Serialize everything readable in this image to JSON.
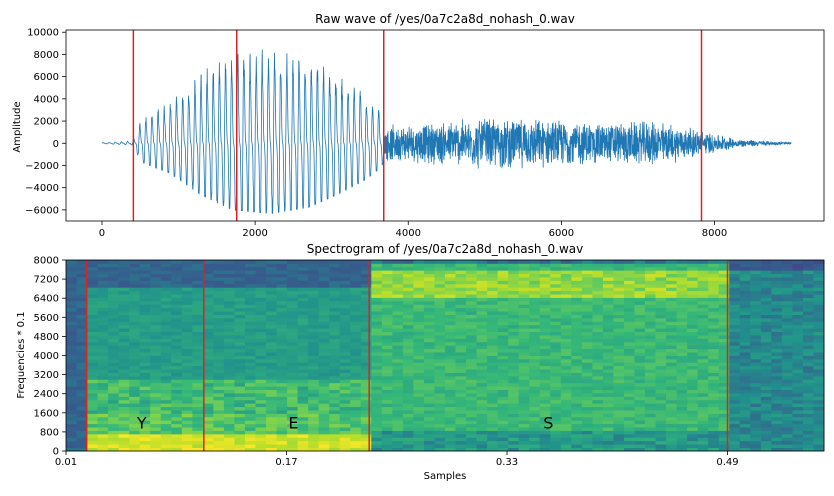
{
  "chart_data": [
    {
      "type": "line",
      "title": "Raw wave of /yes/0a7c2a8d_nohash_0.wav",
      "xlabel": "",
      "ylabel": "Amplitude",
      "xlim": [
        -470,
        9430
      ],
      "ylim": [
        -7000,
        10200
      ],
      "x_ticks": [
        0,
        2000,
        4000,
        6000,
        8000
      ],
      "x_tick_labels": [
        "0",
        "2000",
        "4000",
        "6000",
        "8000"
      ],
      "y_ticks": [
        -6000,
        -4000,
        -2000,
        0,
        2000,
        4000,
        6000,
        8000,
        10000
      ],
      "y_tick_labels": [
        "−6000",
        "−4000",
        "−2000",
        "0",
        "2000",
        "4000",
        "6000",
        "8000",
        "10000"
      ],
      "series_color": "#1f77b4",
      "marker_color": "#e32020",
      "n_samples": 9000,
      "envelope": [
        {
          "x": 0,
          "amp": 50
        },
        {
          "x": 400,
          "amp": 200
        },
        {
          "x": 520,
          "amp": 2400
        },
        {
          "x": 900,
          "amp": 3800
        },
        {
          "x": 1300,
          "amp": 6500
        },
        {
          "x": 1700,
          "amp": 8300
        },
        {
          "x": 2200,
          "amp": 8800
        },
        {
          "x": 2700,
          "amp": 8000
        },
        {
          "x": 3100,
          "amp": 6300
        },
        {
          "x": 3450,
          "amp": 4500
        },
        {
          "x": 3650,
          "amp": 3000
        },
        {
          "x": 3700,
          "amp": 1700
        },
        {
          "x": 4200,
          "amp": 1900
        },
        {
          "x": 5000,
          "amp": 2500
        },
        {
          "x": 5800,
          "amp": 2300
        },
        {
          "x": 6500,
          "amp": 2000
        },
        {
          "x": 7300,
          "amp": 2100
        },
        {
          "x": 7800,
          "amp": 1300
        },
        {
          "x": 8300,
          "amp": 400
        },
        {
          "x": 9000,
          "amp": 100
        }
      ],
      "vertical_markers": [
        410,
        1760,
        3680,
        7830
      ]
    },
    {
      "type": "heatmap",
      "title": "Spectrogram of /yes/0a7c2a8d_nohash_0.wav",
      "xlabel": "Samples",
      "ylabel": "Frequencies * 0.1",
      "xlim": [
        0.01,
        0.56
      ],
      "ylim": [
        0,
        8000
      ],
      "x_ticks": [
        0.01,
        0.17,
        0.33,
        0.49
      ],
      "x_tick_labels": [
        "0.01",
        "0.17",
        "0.33",
        "0.49"
      ],
      "y_ticks": [
        0,
        800,
        1600,
        2400,
        3200,
        4000,
        4800,
        5600,
        6400,
        7200,
        8000
      ],
      "y_tick_labels": [
        "0",
        "800",
        "1600",
        "2400",
        "3200",
        "4000",
        "4800",
        "5600",
        "6400",
        "7200",
        "8000"
      ],
      "colormap": "viridis",
      "vertical_markers": [
        0.025,
        0.11,
        0.23,
        0.49
      ],
      "segment_labels": [
        {
          "text": "Y",
          "x": 0.065,
          "y": 1200
        },
        {
          "text": "E",
          "x": 0.175,
          "y": 1200
        },
        {
          "text": "S",
          "x": 0.36,
          "y": 1200
        }
      ]
    }
  ]
}
